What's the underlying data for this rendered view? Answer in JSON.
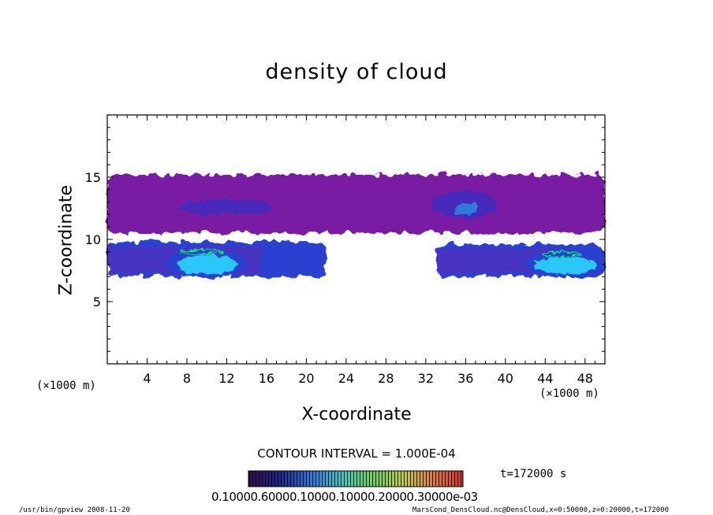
{
  "chart_data": {
    "type": "heatmap",
    "title": "density of cloud",
    "xlabel": "X-coordinate",
    "ylabel": "Z-coordinate",
    "x_unit_left": "(×1000 m)",
    "x_unit_right": "(×1000 m)",
    "xlim": [
      0,
      50
    ],
    "ylim": [
      0,
      20
    ],
    "x_ticks": [
      4,
      8,
      12,
      16,
      20,
      24,
      28,
      32,
      36,
      40,
      44,
      48
    ],
    "y_ticks": [
      5,
      10,
      15
    ],
    "grid": false,
    "contour_interval": "CONTOUR INTERVAL = 1.000E-04",
    "time_label": "t=172000 s",
    "colorbar_label": "0.10000.60000.10000.10000.20000.30000e-03",
    "colors": {
      "low": "#7a1fa3",
      "mid": "#2a3fd0",
      "high": "#2ad6ff",
      "peak": "#00ff66",
      "colorbar": [
        "#3a0a50",
        "#1a2a8a",
        "#2a7fe0",
        "#3ad0c0",
        "#7ad04a",
        "#c0d030",
        "#e08030",
        "#d03030"
      ]
    },
    "regions": [
      {
        "name": "upper band",
        "x0": 0,
        "x1": 50,
        "z0": 10.5,
        "z1": 15.2,
        "level": 1
      },
      {
        "name": "lower band left",
        "x0": 0,
        "x1": 22,
        "z0": 7.0,
        "z1": 9.8,
        "level": 2
      },
      {
        "name": "lower band right",
        "x0": 33,
        "x1": 50,
        "z0": 7.0,
        "z1": 9.6,
        "level": 2
      },
      {
        "name": "core left",
        "x0": 6,
        "x1": 14,
        "z0": 7.2,
        "z1": 9.5,
        "level": 3
      },
      {
        "name": "core right",
        "x0": 42,
        "x1": 50,
        "z0": 7.2,
        "z1": 9.3,
        "level": 3
      }
    ]
  },
  "footer": {
    "left": "/usr/bin/gpview  2008-11-20",
    "right": "MarsCond_DensCloud.nc@DensCloud,x=0:50000,z=0:20000,t=172000"
  }
}
